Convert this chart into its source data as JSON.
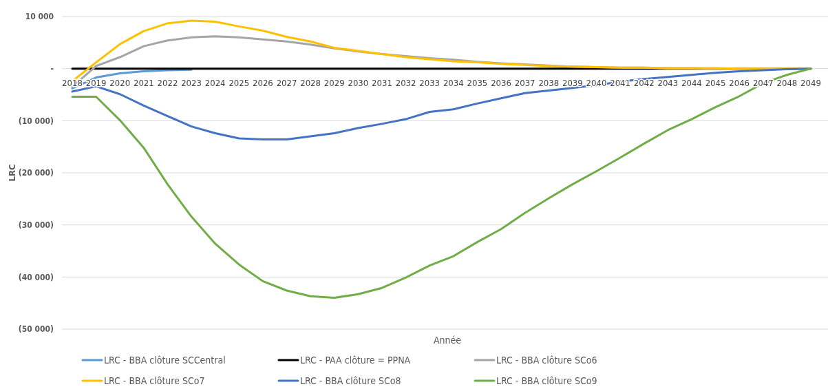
{
  "chart_data": {
    "type": "line",
    "xlabel": "Année",
    "ylabel": "LRC",
    "categories": [
      "2018",
      "2019",
      "2020",
      "2021",
      "2022",
      "2023",
      "2024",
      "2025",
      "2026",
      "2027",
      "2028",
      "2029",
      "2030",
      "2031",
      "2032",
      "2033",
      "2034",
      "2035",
      "2036",
      "2037",
      "2038",
      "2039",
      "2040",
      "2041",
      "2042",
      "2043",
      "2044",
      "2045",
      "2046",
      "2047",
      "2048",
      "2049"
    ],
    "ylim": [
      -50000,
      10000
    ],
    "yticks": [
      {
        "value": 10000,
        "label": "10 000"
      },
      {
        "value": 0,
        "label": "-"
      },
      {
        "value": -10000,
        "label": "(10 000)"
      },
      {
        "value": -20000,
        "label": "(20 000)"
      },
      {
        "value": -30000,
        "label": "(30 000)"
      },
      {
        "value": -40000,
        "label": "(40 000)"
      },
      {
        "value": -50000,
        "label": "(50 000)"
      }
    ],
    "grid": "y",
    "legend": "bottom",
    "marker": "none",
    "line_style": "solid",
    "series": [
      {
        "name": "LRC - BBA clôture SCCentral",
        "color": "#5b9bd5",
        "values": [
          -3800,
          -1700,
          -900,
          -500,
          -300,
          -200,
          null,
          null,
          null,
          null,
          null,
          null,
          null,
          null,
          null,
          null,
          null,
          null,
          null,
          null,
          null,
          null,
          null,
          null,
          null,
          null,
          null,
          null,
          null,
          null,
          null,
          null
        ]
      },
      {
        "name": "LRC - PAA clôture = PPNA",
        "color": "#000000",
        "values": [
          0,
          0,
          0,
          0,
          0,
          0,
          0,
          0,
          0,
          0,
          0,
          0,
          0,
          0,
          0,
          0,
          0,
          0,
          0,
          0,
          0,
          0,
          0,
          0,
          0,
          0,
          0,
          0,
          0,
          0,
          0,
          0
        ]
      },
      {
        "name": "LRC - BBA clôture SCo6",
        "color": "#a5a5a5",
        "values": [
          -3500,
          500,
          2200,
          4300,
          5400,
          6000,
          6200,
          6000,
          5600,
          5200,
          4600,
          3900,
          3300,
          2800,
          2400,
          2000,
          1700,
          1300,
          1000,
          800,
          600,
          400,
          300,
          200,
          200,
          100,
          100,
          0,
          0,
          0,
          0,
          0
        ]
      },
      {
        "name": "LRC - BBA clôture SCo7",
        "color": "#ffc000",
        "values": [
          -2400,
          1200,
          4700,
          7200,
          8700,
          9200,
          9000,
          8100,
          7300,
          6100,
          5200,
          4000,
          3400,
          2800,
          2200,
          1800,
          1400,
          1200,
          900,
          700,
          500,
          400,
          300,
          200,
          200,
          100,
          100,
          100,
          0,
          0,
          0,
          0
        ]
      },
      {
        "name": "LRC - BBA clôture SCo8",
        "color": "#4472c4",
        "values": [
          -4400,
          -3400,
          -4900,
          -7100,
          -9100,
          -11100,
          -12400,
          -13400,
          -13600,
          -13600,
          -13000,
          -12400,
          -11400,
          -10600,
          -9700,
          -8300,
          -7800,
          -6700,
          -5700,
          -4700,
          -4200,
          -3700,
          -3200,
          -2500,
          -2000,
          -1600,
          -1200,
          -800,
          -500,
          -300,
          -100,
          0
        ]
      },
      {
        "name": "LRC - BBA clôture SCo9",
        "color": "#70ad47",
        "values": [
          -5400,
          -5400,
          -9900,
          -15200,
          -22200,
          -28400,
          -33600,
          -37600,
          -40800,
          -42600,
          -43700,
          -44000,
          -43300,
          -42100,
          -40100,
          -37800,
          -36000,
          -33300,
          -30800,
          -27700,
          -24900,
          -22200,
          -19700,
          -17100,
          -14400,
          -11800,
          -9700,
          -7400,
          -5300,
          -2800,
          -1200,
          0
        ]
      }
    ]
  }
}
